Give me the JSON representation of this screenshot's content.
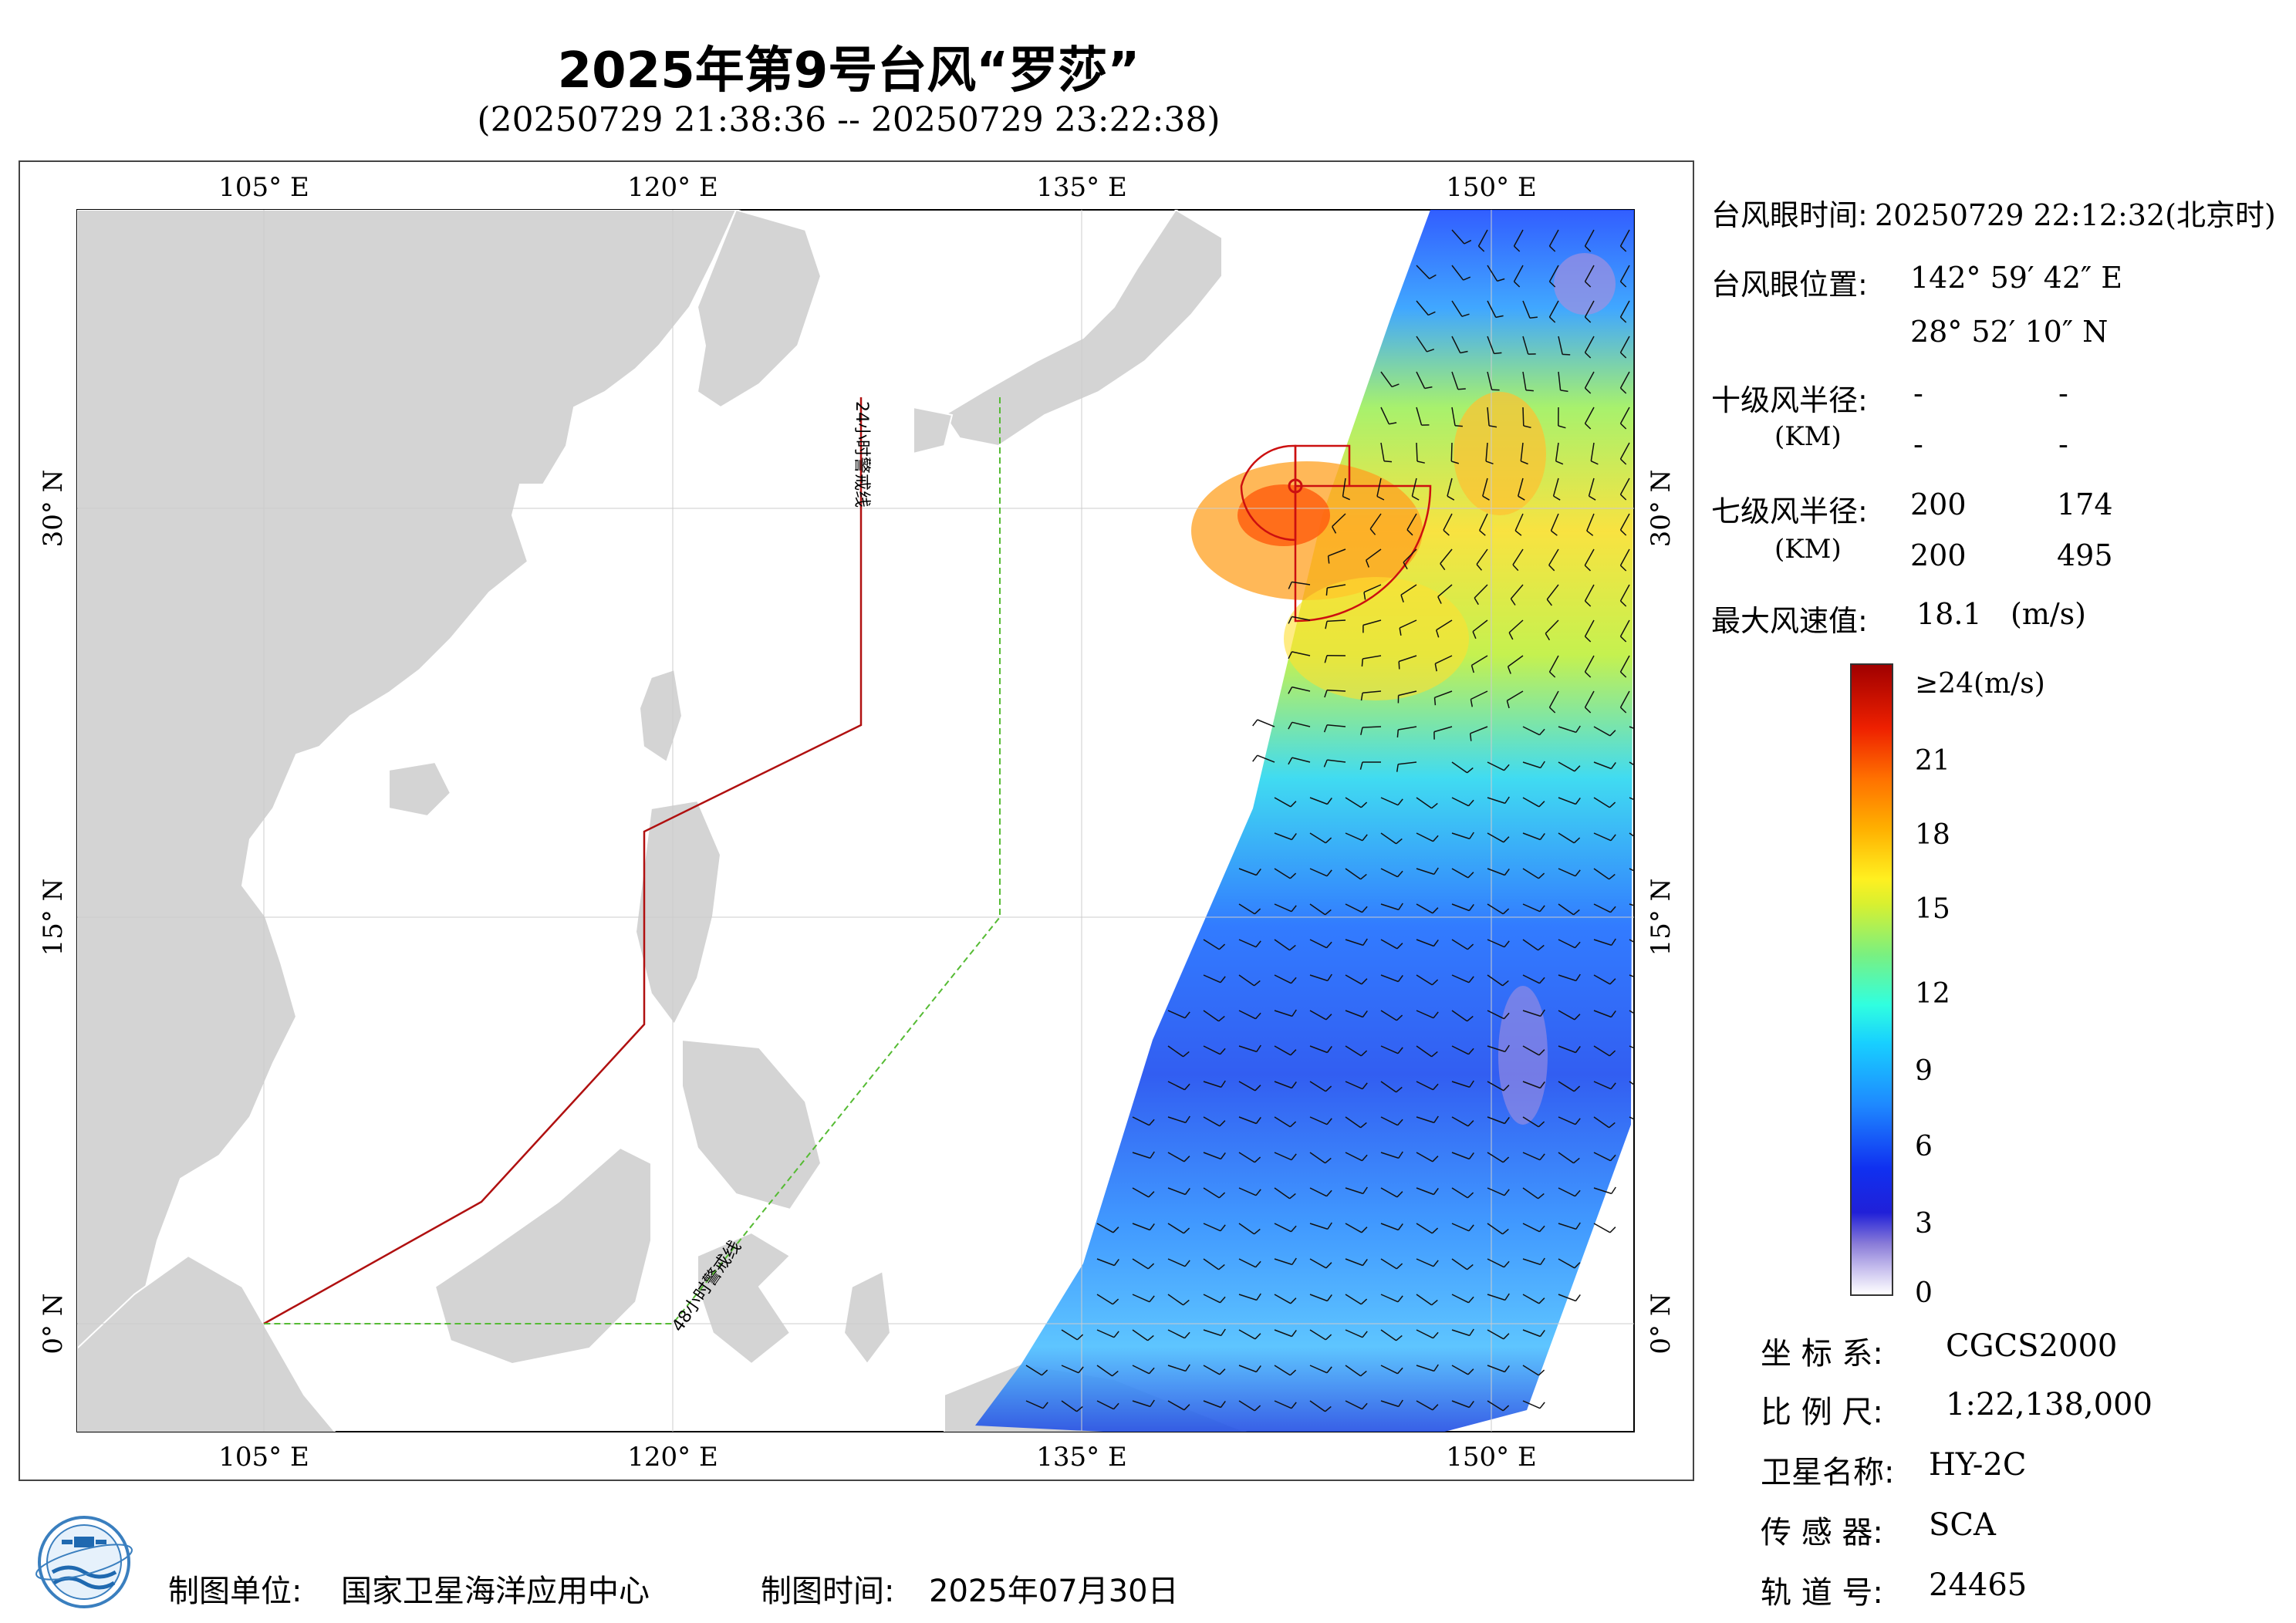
{
  "title": "2025年第9号台风“罗莎”",
  "subtitle": "(20250729 21:38:36 -- 20250729 23:22:38)",
  "map": {
    "lon_range": [
      98,
      155
    ],
    "lat_range": [
      -4,
      41
    ],
    "top_lon_ticks": [
      "105° E",
      "120° E",
      "135° E",
      "150° E"
    ],
    "bottom_lon_ticks": [
      "105° E",
      "120° E",
      "135° E",
      "150° E"
    ],
    "left_lat_ticks": [
      "30° N",
      "15° N",
      "0° N"
    ],
    "right_lat_ticks": [
      "30° N",
      "15° N",
      "0° N"
    ],
    "line_24h_label": "24小时警戒线",
    "line_48h_label": "48小时警戒线",
    "line_24h_color": "#b01010",
    "line_48h_color": "#55bb33",
    "land_color": "#d4d4d4"
  },
  "info": {
    "eye_time_label": "台风眼时间:",
    "eye_time_value": "20250729 22:12:32(北京时)",
    "eye_pos_label": "台风眼位置:",
    "eye_lon": "142° 59′ 42″ E",
    "eye_lat": "28° 52′ 10″ N",
    "r10_label": "十级风半径:",
    "r10_unit": "(KM)",
    "r10_values": [
      "-",
      "-",
      "-",
      "-"
    ],
    "r7_label": "七级风半径:",
    "r7_unit": "(KM)",
    "r7_values": [
      "200",
      "174",
      "200",
      "495"
    ],
    "max_wind_label": "最大风速值:",
    "max_wind_value": "18.1",
    "max_wind_unit": "(m/s)"
  },
  "colorbar": {
    "labels": [
      "≥24(m/s)",
      "21",
      "18",
      "15",
      "12",
      "9",
      "6",
      "3",
      "0"
    ]
  },
  "meta": {
    "crs_label": "坐 标 系:",
    "crs_value": "CGCS2000",
    "scale_label": "比 例 尺:",
    "scale_value": "1:22,138,000",
    "sat_label": "卫星名称:",
    "sat_value": "HY-2C",
    "sensor_label": "传 感 器:",
    "sensor_value": "SCA",
    "orbit_label": "轨 道 号:",
    "orbit_value": "24465"
  },
  "footer": {
    "unit_label": "制图单位:",
    "unit_value": "国家卫星海洋应用中心",
    "time_label": "制图时间:",
    "time_value": "2025年07月30日"
  }
}
